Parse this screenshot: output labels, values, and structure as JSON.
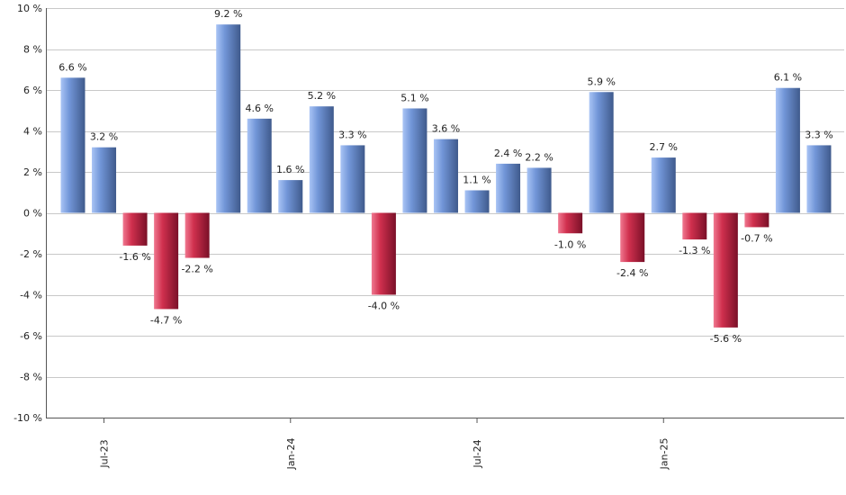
{
  "chart_data": {
    "type": "bar",
    "title": "",
    "xlabel": "",
    "ylabel": "",
    "ylim": [
      -10,
      10
    ],
    "yticks": [
      10,
      8,
      6,
      4,
      2,
      0,
      -2,
      -4,
      -6,
      -8,
      -10
    ],
    "ytick_labels": [
      "10 %",
      "8 %",
      "6 %",
      "4 %",
      "2 %",
      "0 %",
      "-2 %",
      "-4 %",
      "-6 %",
      "-8 %",
      "-10 %"
    ],
    "grid": true,
    "legend": "none",
    "values": [
      6.6,
      3.2,
      -1.6,
      -4.7,
      -2.2,
      9.2,
      4.6,
      1.6,
      5.2,
      3.3,
      -4.0,
      5.1,
      3.6,
      1.1,
      2.4,
      2.2,
      -1.0,
      5.9,
      -2.4,
      2.7,
      -1.3,
      -5.6,
      -0.7,
      6.1,
      3.3
    ],
    "value_labels": [
      "6.6 %",
      "3.2 %",
      "-1.6 %",
      "-4.7 %",
      "-2.2 %",
      "9.2 %",
      "4.6 %",
      "1.6 %",
      "5.2 %",
      "3.3 %",
      "-4.0 %",
      "5.1 %",
      "3.6 %",
      "1.1 %",
      "2.4 %",
      "2.2 %",
      "-1.0 %",
      "5.9 %",
      "-2.4 %",
      "2.7 %",
      "-1.3 %",
      "-5.6 %",
      "-0.7 %",
      "6.1 %",
      "3.3 %"
    ],
    "xtick_labels": [
      {
        "label": "Jul-23",
        "index": 1
      },
      {
        "label": "Jan-24",
        "index": 7
      },
      {
        "label": "Jul-24",
        "index": 13
      },
      {
        "label": "Jan-25",
        "index": 19
      }
    ],
    "colors": {
      "positive_light": "#a9c4f5",
      "positive_mid": "#7296d8",
      "positive_dark": "#3f5a8c",
      "negative_light": "#f07890",
      "negative_mid": "#d0304e",
      "negative_dark": "#7a1028",
      "grid": "#c8c8c8"
    }
  }
}
